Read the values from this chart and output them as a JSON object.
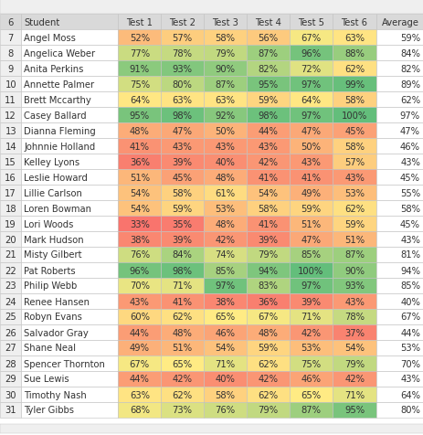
{
  "header_row": [
    "Student",
    "Test 1",
    "Test 2",
    "Test 3",
    "Test 4",
    "Test 5",
    "Test 6",
    "Average"
  ],
  "row_numbers": [
    7,
    8,
    9,
    10,
    11,
    12,
    13,
    14,
    15,
    16,
    17,
    18,
    19,
    20,
    21,
    22,
    23,
    24,
    25,
    26,
    27,
    28,
    29,
    30,
    31
  ],
  "students": [
    "Angel Moss",
    "Angelica Weber",
    "Anita Perkins",
    "Annette Palmer",
    "Brett Mccarthy",
    "Casey Ballard",
    "Dianna Fleming",
    "Johnnie Holland",
    "Kelley Lyons",
    "Leslie Howard",
    "Lillie Carlson",
    "Loren Bowman",
    "Lori Woods",
    "Mark Hudson",
    "Misty Gilbert",
    "Pat Roberts",
    "Philip Webb",
    "Renee Hansen",
    "Robyn Evans",
    "Salvador Gray",
    "Shane Neal",
    "Spencer Thornton",
    "Sue Lewis",
    "Timothy Nash",
    "Tyler Gibbs"
  ],
  "data": [
    [
      52,
      57,
      58,
      56,
      67,
      63,
      59
    ],
    [
      77,
      78,
      79,
      87,
      96,
      88,
      84
    ],
    [
      91,
      93,
      90,
      82,
      72,
      62,
      82
    ],
    [
      75,
      80,
      87,
      95,
      97,
      99,
      89
    ],
    [
      64,
      63,
      63,
      59,
      64,
      58,
      62
    ],
    [
      95,
      98,
      92,
      98,
      97,
      100,
      97
    ],
    [
      48,
      47,
      50,
      44,
      47,
      45,
      47
    ],
    [
      41,
      43,
      43,
      43,
      50,
      58,
      46
    ],
    [
      36,
      39,
      40,
      42,
      43,
      57,
      43
    ],
    [
      51,
      45,
      48,
      41,
      41,
      43,
      45
    ],
    [
      54,
      58,
      61,
      54,
      49,
      53,
      55
    ],
    [
      54,
      59,
      53,
      58,
      59,
      62,
      58
    ],
    [
      33,
      35,
      48,
      41,
      51,
      59,
      45
    ],
    [
      38,
      39,
      42,
      39,
      47,
      51,
      43
    ],
    [
      76,
      84,
      74,
      79,
      85,
      87,
      81
    ],
    [
      96,
      98,
      85,
      94,
      100,
      90,
      94
    ],
    [
      70,
      71,
      97,
      83,
      97,
      93,
      85
    ],
    [
      43,
      41,
      38,
      36,
      39,
      43,
      40
    ],
    [
      60,
      62,
      65,
      67,
      71,
      78,
      67
    ],
    [
      44,
      48,
      46,
      48,
      42,
      37,
      44
    ],
    [
      49,
      51,
      54,
      59,
      53,
      54,
      53
    ],
    [
      67,
      65,
      71,
      62,
      75,
      79,
      70
    ],
    [
      44,
      42,
      40,
      42,
      46,
      42,
      43
    ],
    [
      63,
      62,
      58,
      62,
      65,
      71,
      64
    ],
    [
      68,
      73,
      76,
      79,
      87,
      95,
      80
    ]
  ],
  "header_bg": "#d9d9d9",
  "strip_bg": "#efefef",
  "row_num_bg": "#efefef",
  "white_bg": "#ffffff",
  "font_size": 7.2,
  "fig_width": 4.64,
  "fig_height": 4.77,
  "dpi": 100
}
